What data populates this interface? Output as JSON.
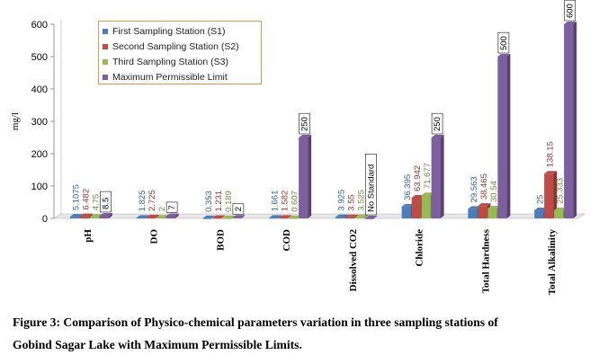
{
  "chart_data": {
    "type": "bar",
    "categories": [
      "pH",
      "DO",
      "BOD",
      "COD",
      "Dissolved CO2",
      "Chloride",
      "Total Hardness",
      "Total Alkalinity"
    ],
    "series": [
      {
        "name": "First Sampling Station (S1)",
        "color": "#4a7ebb",
        "values": [
          5.1075,
          1.825,
          0.353,
          1.661,
          3.925,
          36.395,
          29.563,
          25
        ],
        "labels": [
          "5.1075",
          "1.825",
          "0.353",
          "1.661",
          "3.925",
          "36.395",
          "29.563",
          "25"
        ]
      },
      {
        "name": "Second Sampling Station (S2)",
        "color": "#be4b48",
        "values": [
          6.482,
          2.725,
          1.231,
          1.582,
          3.55,
          63.942,
          38.465,
          138.15
        ],
        "labels": [
          "6.482",
          "2.725",
          "1.231",
          "1.582",
          "3.55",
          "63.942",
          "38.465",
          "138.15"
        ]
      },
      {
        "name": "Third Sampling Station (S3)",
        "color": "#98b954",
        "values": [
          4.75,
          2,
          0.189,
          0.607,
          3.525,
          71.677,
          30.54,
          25.333
        ],
        "labels": [
          "4.75",
          "2",
          "0.189",
          "0.607",
          "3.525",
          "71.677",
          "30.54",
          "25.333"
        ]
      },
      {
        "name": "Maximum Permissible Limit",
        "color": "#7d5fa0",
        "values": [
          8.5,
          7,
          2,
          250,
          0,
          250,
          500,
          600
        ],
        "labels": [
          "8.5",
          "7",
          "2",
          "250",
          "No Standard",
          "250",
          "500",
          "600"
        ]
      }
    ],
    "ylabel": "mg/l",
    "ylim": [
      0,
      600
    ],
    "yticks": [
      0,
      100,
      200,
      300,
      400,
      500,
      600
    ],
    "legend_position": "top-left",
    "grid": false
  },
  "caption": {
    "line1": "Figure 3: Comparison of Physico-chemical parameters variation in three sampling stations of",
    "line2": "Gobind Sagar Lake with Maximum Permissible Limits."
  }
}
